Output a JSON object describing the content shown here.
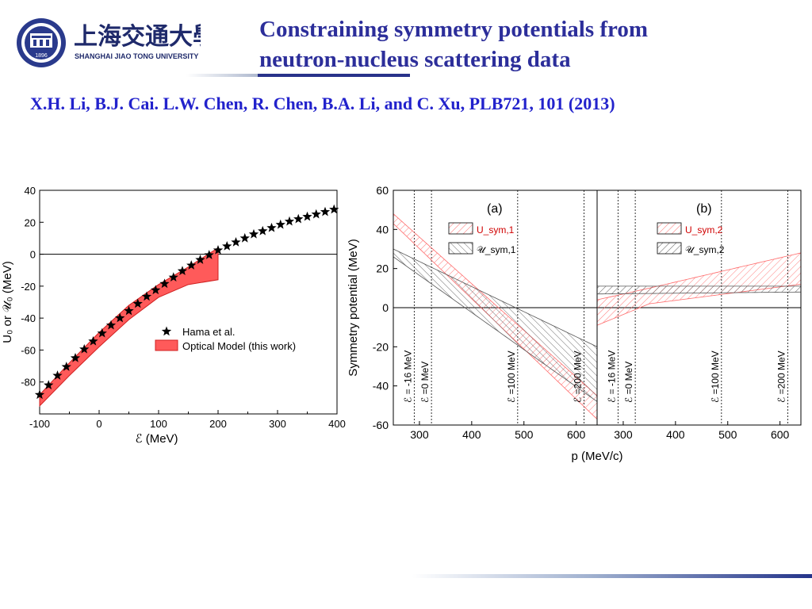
{
  "logo": {
    "chinese_name": "上海交通大學",
    "english_name": "SHANGHAI  JIAO TONG  UNIVERSITY",
    "seal_year": "1896"
  },
  "slide": {
    "title_line1": "Constraining symmetry potentials from",
    "title_line2": "neutron-nucleus scattering data",
    "citation": "X.H. Li, B.J. Cai. L.W. Chen, R. Chen, B.A. Li, and C. Xu, PLB721, 101 (2013)"
  },
  "colors": {
    "title": "#2c2e9a",
    "citation": "#2222cc",
    "red_band": "#ff5a5a",
    "hatch_red": "#ff6b6b",
    "hatch_grey": "#555555"
  },
  "chart_data": [
    {
      "type": "scatter",
      "panel": "left",
      "xlabel": "ℰ (MeV)",
      "ylabel": "U₀ or 𝒰₀ (MeV)",
      "xlim": [
        -100,
        400
      ],
      "ylim": [
        -100,
        40
      ],
      "xticks": [
        "-100",
        "0",
        "100",
        "200",
        "300",
        "400"
      ],
      "yticks": [
        "40",
        "20",
        "0",
        "-20",
        "-40",
        "-60",
        "-80"
      ],
      "legend": [
        "Hama et al.",
        "Optical Model (this work)"
      ],
      "legend_position": "center-right",
      "series": [
        {
          "name": "Hama et al.",
          "marker": "star",
          "x": [
            -100,
            -85,
            -70,
            -55,
            -40,
            -25,
            -10,
            5,
            20,
            35,
            50,
            65,
            80,
            95,
            110,
            125,
            140,
            155,
            170,
            185,
            200,
            215,
            230,
            245,
            260,
            275,
            290,
            305,
            320,
            335,
            350,
            365,
            380,
            395
          ],
          "y": [
            -88,
            -82,
            -76,
            -70.5,
            -65,
            -59.5,
            -54.5,
            -49.5,
            -44.5,
            -40,
            -35.5,
            -31,
            -26.5,
            -22.5,
            -18.5,
            -14.5,
            -10.5,
            -7,
            -3.5,
            -0.5,
            2.5,
            5,
            7.5,
            10,
            12.5,
            14.5,
            16.5,
            18.5,
            20.5,
            22,
            23.5,
            25,
            26.5,
            28
          ]
        },
        {
          "name": "Optical Model (this work)",
          "band": true,
          "x": [
            -100,
            -50,
            0,
            50,
            100,
            150,
            200
          ],
          "upper": [
            -88,
            -68,
            -49,
            -32,
            -19,
            -8,
            4
          ],
          "lower": [
            -95,
            -76,
            -58,
            -41,
            -27,
            -19,
            -16
          ]
        }
      ]
    },
    {
      "type": "area",
      "panel": "right-a",
      "label": "(a)",
      "xlabel": "p (MeV/c)",
      "ylabel": "Symmetry potential (MeV)",
      "xlim": [
        250,
        640
      ],
      "ylim": [
        -60,
        60
      ],
      "xticks": [
        "300",
        "400",
        "500",
        "600"
      ],
      "yticks": [
        "60",
        "40",
        "20",
        "0",
        "-20",
        "-40",
        "-60"
      ],
      "legend": [
        "U_sym,1",
        "𝒰_sym,1"
      ],
      "legend_position": "top-center",
      "vlines": [
        {
          "x": 290,
          "label": "ℰ = -16 MeV"
        },
        {
          "x": 323,
          "label": "ℰ =0 MeV"
        },
        {
          "x": 488,
          "label": "ℰ =100 MeV"
        },
        {
          "x": 615,
          "label": "ℰ =200 MeV"
        }
      ],
      "series": [
        {
          "name": "U_sym,1",
          "x": [
            250,
            640
          ],
          "upper": [
            48,
            -45
          ],
          "lower": [
            43,
            -57
          ]
        },
        {
          "name": "𝒰_sym,1",
          "x": [
            250,
            640
          ],
          "upper": [
            30,
            -20
          ],
          "lower": [
            26,
            -48
          ]
        }
      ]
    },
    {
      "type": "area",
      "panel": "right-b",
      "label": "(b)",
      "xlabel": "p (MeV/c)",
      "xlim": [
        250,
        640
      ],
      "ylim": [
        -60,
        60
      ],
      "xticks": [
        "300",
        "400",
        "500",
        "600"
      ],
      "legend": [
        "U_sym,2",
        "𝒰_sym,2"
      ],
      "legend_position": "top-center",
      "vlines": [
        {
          "x": 290,
          "label": "ℰ = -16 MeV"
        },
        {
          "x": 323,
          "label": "ℰ =0 MeV"
        },
        {
          "x": 488,
          "label": "ℰ =100 MeV"
        },
        {
          "x": 615,
          "label": "ℰ =200 MeV"
        }
      ],
      "series": [
        {
          "name": "U_sym,2",
          "x": [
            250,
            350,
            640
          ],
          "upper": [
            4,
            10,
            28
          ],
          "lower": [
            -9,
            2,
            12
          ]
        },
        {
          "name": "𝒰_sym,2",
          "x": [
            250,
            640
          ],
          "upper": [
            11,
            11
          ],
          "lower": [
            7,
            8
          ]
        }
      ]
    }
  ]
}
